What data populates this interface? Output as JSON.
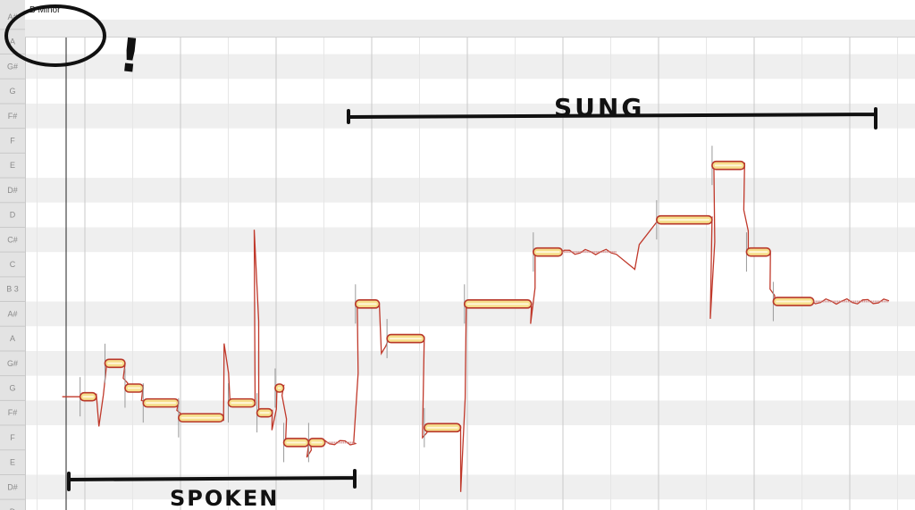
{
  "key_signature": "B Minor",
  "pitch_ruler": [
    "D",
    "D#",
    "E",
    "F",
    "F#",
    "G",
    "G#",
    "A",
    "A#",
    "B 3",
    "C",
    "C#",
    "D",
    "D#",
    "E",
    "F",
    "F#",
    "G",
    "G#",
    "A",
    "A#"
  ],
  "colors": {
    "note_fill": "#f6df8c",
    "note_border": "#b8372a",
    "pitch_curve": "#c0392b",
    "sharp_row": "#efefef",
    "annotation": "#111111"
  },
  "notes": [
    {
      "pitch": "G",
      "cents": -35,
      "start": -0.05,
      "end": 0.12,
      "excursion": -1.2
    },
    {
      "pitch": "G#",
      "cents": 0,
      "start": 0.21,
      "end": 0.42,
      "excursion": -0.6
    },
    {
      "pitch": "G",
      "cents": 0,
      "start": 0.42,
      "end": 0.61,
      "excursion": -0.5
    },
    {
      "pitch": "F#",
      "cents": 40,
      "start": 0.61,
      "end": 0.98,
      "excursion": -0.3
    },
    {
      "pitch": "F#",
      "cents": -20,
      "start": 0.98,
      "end": 1.45,
      "excursion": 3
    },
    {
      "pitch": "G",
      "cents": -60,
      "start": 1.5,
      "end": 1.78,
      "excursion": 7
    },
    {
      "pitch": "F#",
      "cents": 0,
      "start": 1.8,
      "end": 1.96,
      "excursion": -0.7
    },
    {
      "pitch": "G",
      "cents": 0,
      "start": 1.99,
      "end": 2.08,
      "excursion": -0.3
    },
    {
      "pitch": "F",
      "cents": -20,
      "start": 2.08,
      "end": 2.34,
      "excursion": -0.6
    },
    {
      "pitch": "F",
      "cents": -20,
      "start": 2.34,
      "end": 2.83,
      "excursion": 0
    },
    {
      "pitch": "B 3",
      "cents": -60,
      "start": 2.83,
      "end": 3.08,
      "excursion": -2
    },
    {
      "pitch": "A",
      "cents": 0,
      "start": 3.16,
      "end": 3.55,
      "excursion": -4
    },
    {
      "pitch": "F",
      "cents": 40,
      "start": 3.55,
      "end": 3.93,
      "excursion": -2.6
    },
    {
      "pitch": "B 3",
      "cents": -60,
      "start": 3.97,
      "end": 4.67,
      "excursion": -0.8
    },
    {
      "pitch": "C#",
      "cents": -50,
      "start": 4.69,
      "end": 5.56,
      "excursion": -0.7
    },
    {
      "pitch": "D",
      "cents": -20,
      "start": 5.98,
      "end": 6.56,
      "excursion": -4
    },
    {
      "pitch": "E",
      "cents": 0,
      "start": 6.56,
      "end": 6.9,
      "excursion": -1.8
    },
    {
      "pitch": "C#",
      "cents": -50,
      "start": 6.92,
      "end": 7.17,
      "excursion": -1.5
    },
    {
      "pitch": "B 3",
      "cents": -50,
      "start": 7.2,
      "end": 8.41,
      "excursion": -2
    }
  ],
  "annotations": {
    "sung": "SUNG",
    "spoken": "SPOKEN",
    "exclamation": "!"
  }
}
